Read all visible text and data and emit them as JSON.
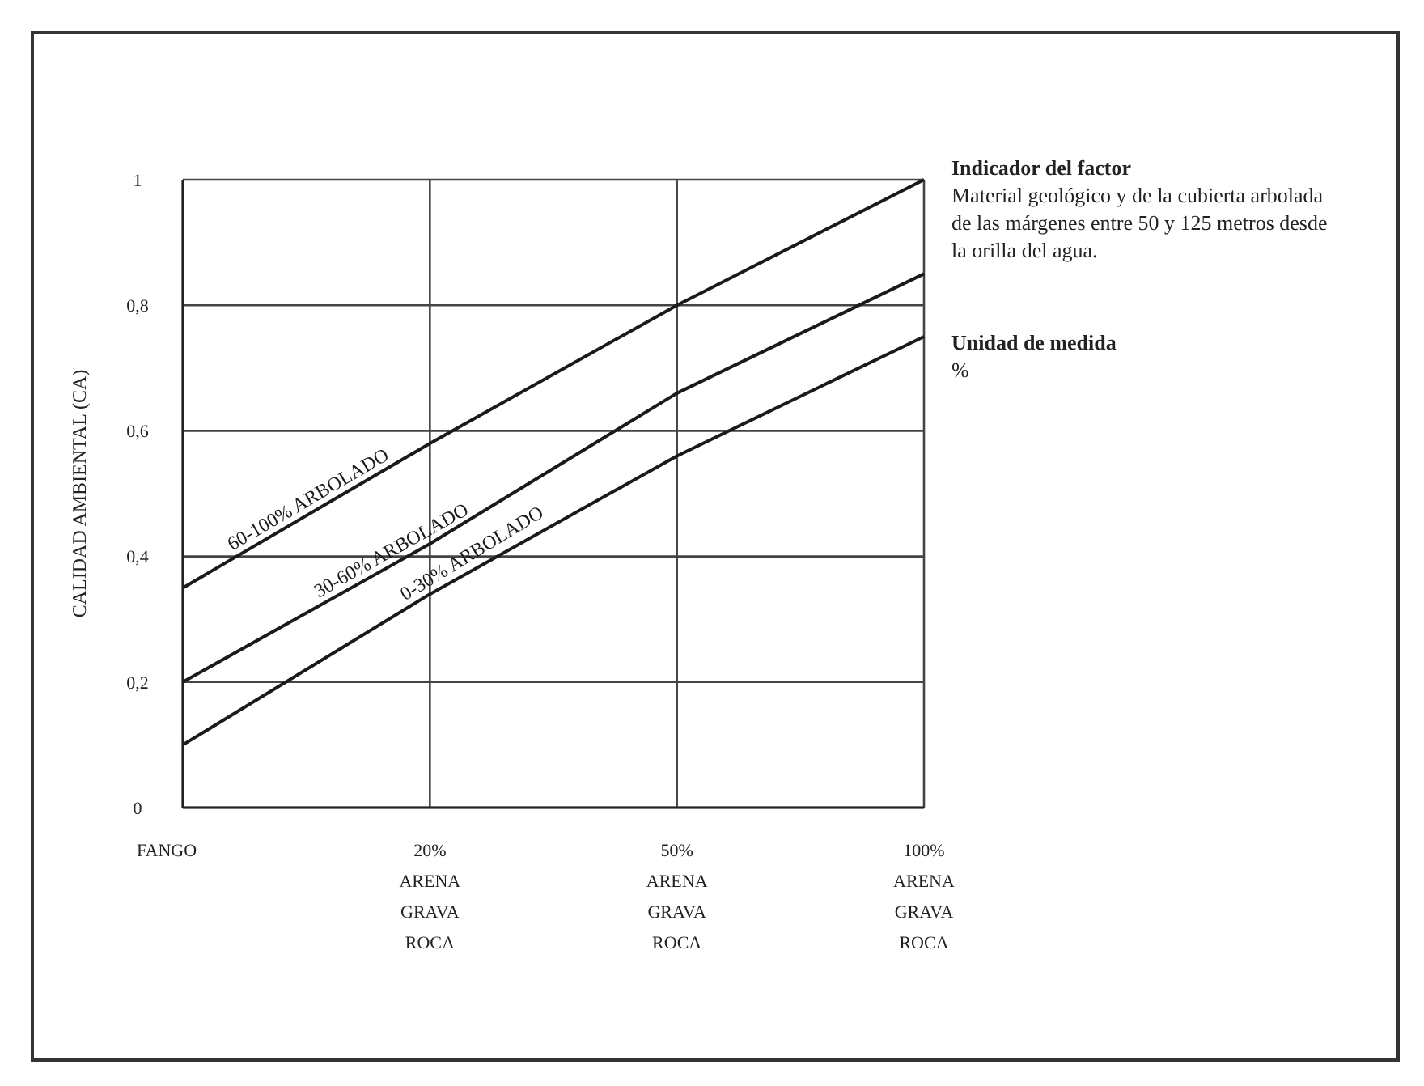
{
  "chart_data": {
    "type": "line",
    "ylabel": "CALIDAD AMBIENTAL (CA)",
    "categories": [
      "FANGO",
      "20%\nARENA\nGRAVA\nROCA",
      "50%\nARENA\nGRAVA\nROCA",
      "100%\nARENA\nGRAVA\nROCA"
    ],
    "ylim": [
      0,
      1
    ],
    "yticks": [
      0,
      {
        "value": 0.2,
        "label": "0,2"
      },
      {
        "value": 0.4,
        "label": "0,4"
      },
      {
        "value": 0.6,
        "label": "0,6"
      },
      {
        "value": 0.8,
        "label": "0,8"
      },
      1
    ],
    "grid": true,
    "marker": "none",
    "line_style": "solid",
    "series": [
      {
        "name": "60-100% ARBOLADO",
        "color": "#1a1a1a",
        "values": [
          0.35,
          0.58,
          0.8,
          1.0
        ]
      },
      {
        "name": "30-60% ARBOLADO",
        "color": "#1a1a1a",
        "values": [
          0.2,
          0.42,
          0.66,
          0.85
        ]
      },
      {
        "name": "0-30% ARBOLADO",
        "color": "#1a1a1a",
        "values": [
          0.1,
          0.34,
          0.56,
          0.75
        ]
      }
    ],
    "annotations": [
      "Indicador del factor",
      "Material geológico y de la cubierta arbolada de las márgenes entre 50 y 125 metros desde la orilla del agua.",
      "Unidad de medida",
      "%"
    ]
  }
}
